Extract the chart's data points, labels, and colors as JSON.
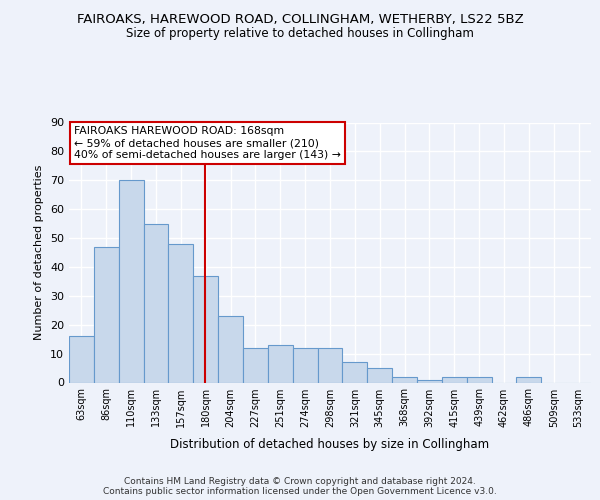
{
  "title1": "FAIROAKS, HAREWOOD ROAD, COLLINGHAM, WETHERBY, LS22 5BZ",
  "title2": "Size of property relative to detached houses in Collingham",
  "xlabel": "Distribution of detached houses by size in Collingham",
  "ylabel": "Number of detached properties",
  "bar_values": [
    16,
    47,
    70,
    55,
    48,
    37,
    23,
    12,
    13,
    12,
    12,
    7,
    5,
    2,
    1,
    2,
    2,
    0,
    2,
    0,
    0
  ],
  "categories": [
    "63sqm",
    "86sqm",
    "110sqm",
    "133sqm",
    "157sqm",
    "180sqm",
    "204sqm",
    "227sqm",
    "251sqm",
    "274sqm",
    "298sqm",
    "321sqm",
    "345sqm",
    "368sqm",
    "392sqm",
    "415sqm",
    "439sqm",
    "462sqm",
    "486sqm",
    "509sqm",
    "533sqm"
  ],
  "bar_color": "#c8d8eb",
  "bar_edge_color": "#6699cc",
  "ylim": [
    0,
    90
  ],
  "yticks": [
    0,
    10,
    20,
    30,
    40,
    50,
    60,
    70,
    80,
    90
  ],
  "property_line_x": 4.98,
  "property_label": "FAIROAKS HAREWOOD ROAD: 168sqm",
  "annotation_line1": "← 59% of detached houses are smaller (210)",
  "annotation_line2": "40% of semi-detached houses are larger (143) →",
  "footer1": "Contains HM Land Registry data © Crown copyright and database right 2024.",
  "footer2": "Contains public sector information licensed under the Open Government Licence v3.0.",
  "background_color": "#eef2fa",
  "grid_color": "#ffffff",
  "annotation_rect_color": "#cc0000"
}
